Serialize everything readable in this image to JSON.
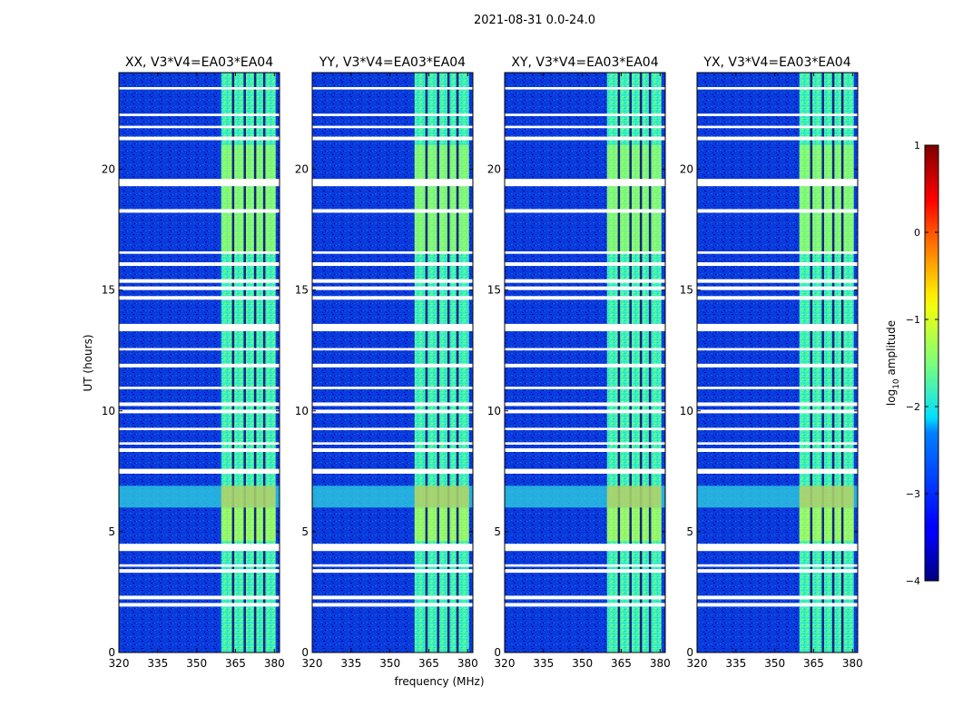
{
  "suptitle": "2021-08-31 0.0-24.0",
  "chart_data": {
    "type": "heatmap",
    "panels": [
      {
        "title": "XX, V3*V4=EA03*EA04",
        "polarization": "XX"
      },
      {
        "title": "YY, V3*V4=EA03*EA04",
        "polarization": "YY"
      },
      {
        "title": "XY, V3*V4=EA03*EA04",
        "polarization": "XY"
      },
      {
        "title": "YX, V3*V4=EA03*EA04",
        "polarization": "YX"
      }
    ],
    "xlabel": "frequency (MHz)",
    "ylabel": "UT (hours)",
    "xlim": [
      320,
      382
    ],
    "ylim": [
      0,
      24
    ],
    "xticks": [
      320,
      335,
      350,
      365,
      380
    ],
    "yticks": [
      0,
      5,
      10,
      15,
      20
    ],
    "colorbar": {
      "label": "log10 amplitude",
      "label_main": "log",
      "label_sub": "10",
      "label_rest": " amplitude",
      "range": [
        -4,
        1
      ],
      "ticks": [
        "1",
        "0",
        "−1",
        "−2",
        "−3",
        "−4"
      ],
      "tick_values": [
        1,
        0,
        -1,
        -2,
        -3,
        -4
      ],
      "colormap": "jet"
    },
    "bright_band_mhz": [
      359.5,
      380.5
    ],
    "bright_band_edges_mhz": [
      364.0,
      368.5,
      372.5,
      376.0
    ],
    "rfi_band_hours": [
      6.0,
      6.9
    ],
    "flagged_hours": [
      [
        1.9,
        2.05
      ],
      [
        2.2,
        2.35
      ],
      [
        3.3,
        3.45
      ],
      [
        3.55,
        3.65
      ],
      [
        4.2,
        4.5
      ],
      [
        7.4,
        7.6
      ],
      [
        8.3,
        8.45
      ],
      [
        8.6,
        8.7
      ],
      [
        9.2,
        9.3
      ],
      [
        9.9,
        10.05
      ],
      [
        10.2,
        10.35
      ],
      [
        10.9,
        11.0
      ],
      [
        11.8,
        11.95
      ],
      [
        12.5,
        12.6
      ],
      [
        13.3,
        13.6
      ],
      [
        14.6,
        14.75
      ],
      [
        15.0,
        15.15
      ],
      [
        15.3,
        15.45
      ],
      [
        16.0,
        16.15
      ],
      [
        16.5,
        16.6
      ],
      [
        18.2,
        18.35
      ],
      [
        19.3,
        19.6
      ],
      [
        21.2,
        21.35
      ],
      [
        21.7,
        21.8
      ],
      [
        22.2,
        22.3
      ],
      [
        23.3,
        23.4
      ]
    ]
  }
}
